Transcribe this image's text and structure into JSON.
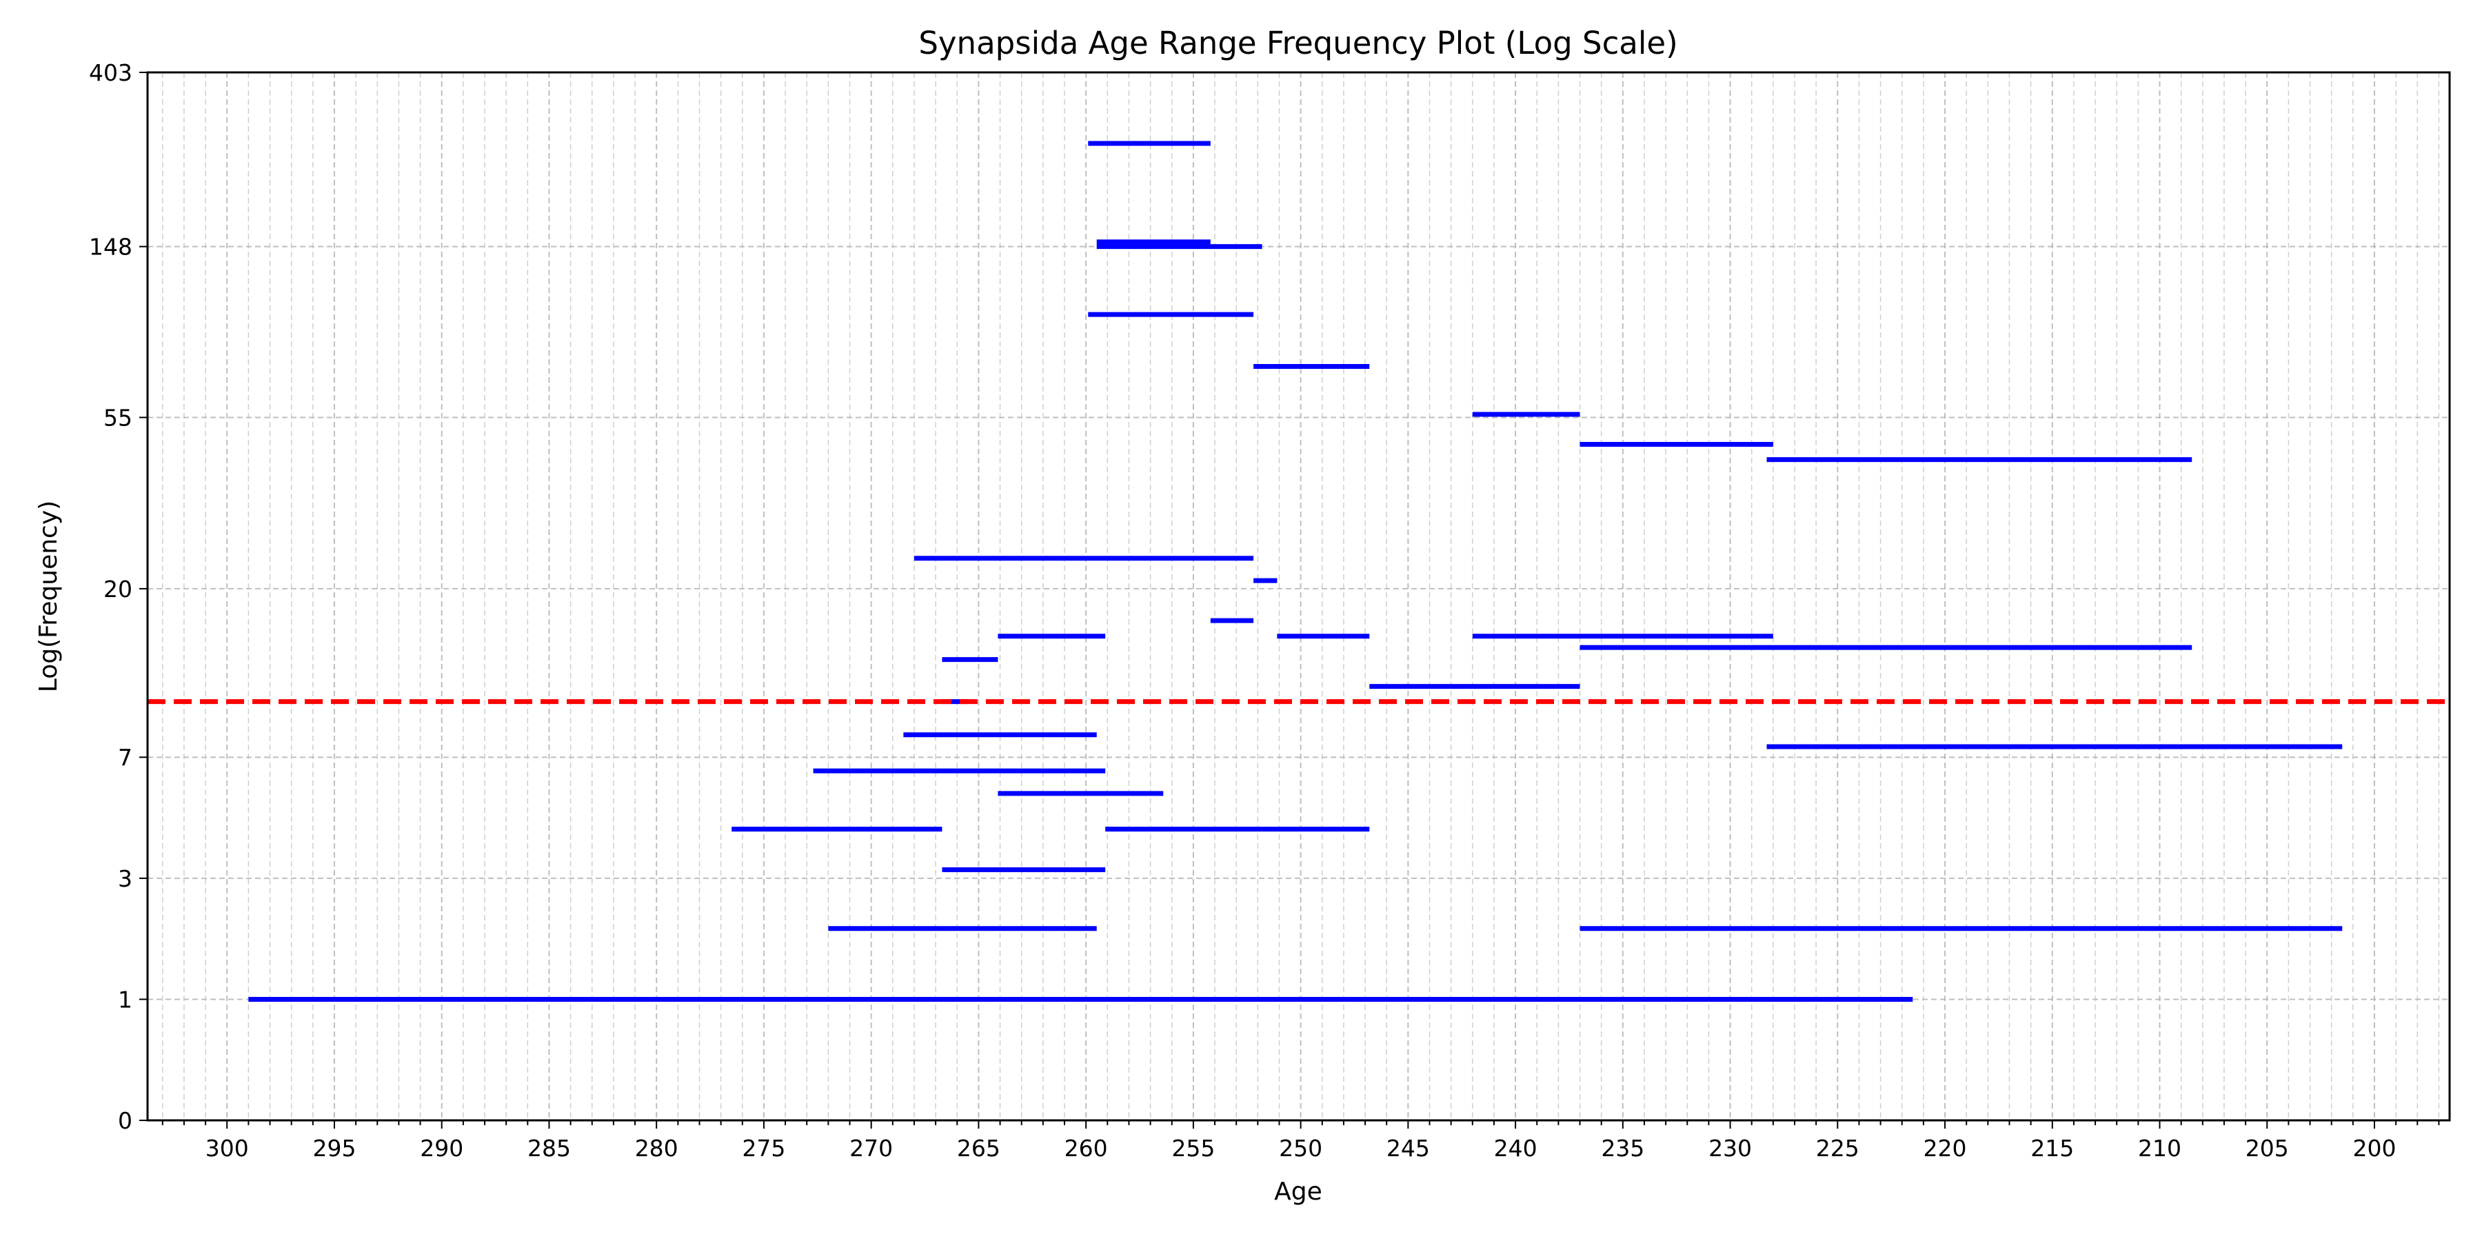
{
  "chart_data": {
    "type": "range-bar",
    "title": "Synapsida Age Range Frequency Plot (Log Scale)",
    "xlabel": "Age",
    "ylabel": "Log(Frequency)",
    "x_inverted": true,
    "xlim": [
      303.7,
      196.5
    ],
    "x_major_ticks": [
      300,
      295,
      290,
      285,
      280,
      275,
      270,
      265,
      260,
      255,
      250,
      245,
      240,
      235,
      230,
      225,
      220,
      215,
      210,
      205,
      200
    ],
    "y_scale": "log1p",
    "y_tick_labels": [
      "0",
      "1",
      "3",
      "7",
      "20",
      "55",
      "148",
      "403"
    ],
    "ylim": [
      0,
      403
    ],
    "grid": true,
    "threshold_line": {
      "value": 10,
      "color": "#ff0000",
      "style": "dashed"
    },
    "series_color": "#0000ff",
    "ranges": [
      {
        "start": 299,
        "end": 221.5,
        "frequency": 1
      },
      {
        "start": 272,
        "end": 259.5,
        "frequency": 2
      },
      {
        "start": 237,
        "end": 201.5,
        "frequency": 2
      },
      {
        "start": 266.7,
        "end": 259.1,
        "frequency": 3.2
      },
      {
        "start": 276.5,
        "end": 266.7,
        "frequency": 4.3
      },
      {
        "start": 259.1,
        "end": 251.8,
        "frequency": 4.3
      },
      {
        "start": 251.8,
        "end": 246.8,
        "frequency": 4.3
      },
      {
        "start": 264.1,
        "end": 256.4,
        "frequency": 5.5
      },
      {
        "start": 272.7,
        "end": 259.1,
        "frequency": 6.4
      },
      {
        "start": 228.3,
        "end": 201.5,
        "frequency": 7.5
      },
      {
        "start": 268.5,
        "end": 259.5,
        "frequency": 8.1
      },
      {
        "start": 266.7,
        "end": 265.5,
        "frequency": 10
      },
      {
        "start": 246.8,
        "end": 237,
        "frequency": 11
      },
      {
        "start": 266.7,
        "end": 264.1,
        "frequency": 13
      },
      {
        "start": 237,
        "end": 208.5,
        "frequency": 14
      },
      {
        "start": 264.1,
        "end": 259.1,
        "frequency": 15
      },
      {
        "start": 251.1,
        "end": 246.8,
        "frequency": 15
      },
      {
        "start": 242,
        "end": 228,
        "frequency": 15
      },
      {
        "start": 254.2,
        "end": 252.2,
        "frequency": 16.5
      },
      {
        "start": 252.2,
        "end": 251.1,
        "frequency": 21
      },
      {
        "start": 268,
        "end": 252.2,
        "frequency": 24
      },
      {
        "start": 228.3,
        "end": 208.5,
        "frequency": 43
      },
      {
        "start": 237,
        "end": 228,
        "frequency": 47
      },
      {
        "start": 242,
        "end": 237,
        "frequency": 56
      },
      {
        "start": 252.2,
        "end": 246.8,
        "frequency": 74
      },
      {
        "start": 259.9,
        "end": 252.2,
        "frequency": 100
      },
      {
        "start": 259.5,
        "end": 251.8,
        "frequency": 148
      },
      {
        "start": 259.5,
        "end": 254.2,
        "frequency": 152
      },
      {
        "start": 259.9,
        "end": 254.2,
        "frequency": 268
      }
    ]
  }
}
